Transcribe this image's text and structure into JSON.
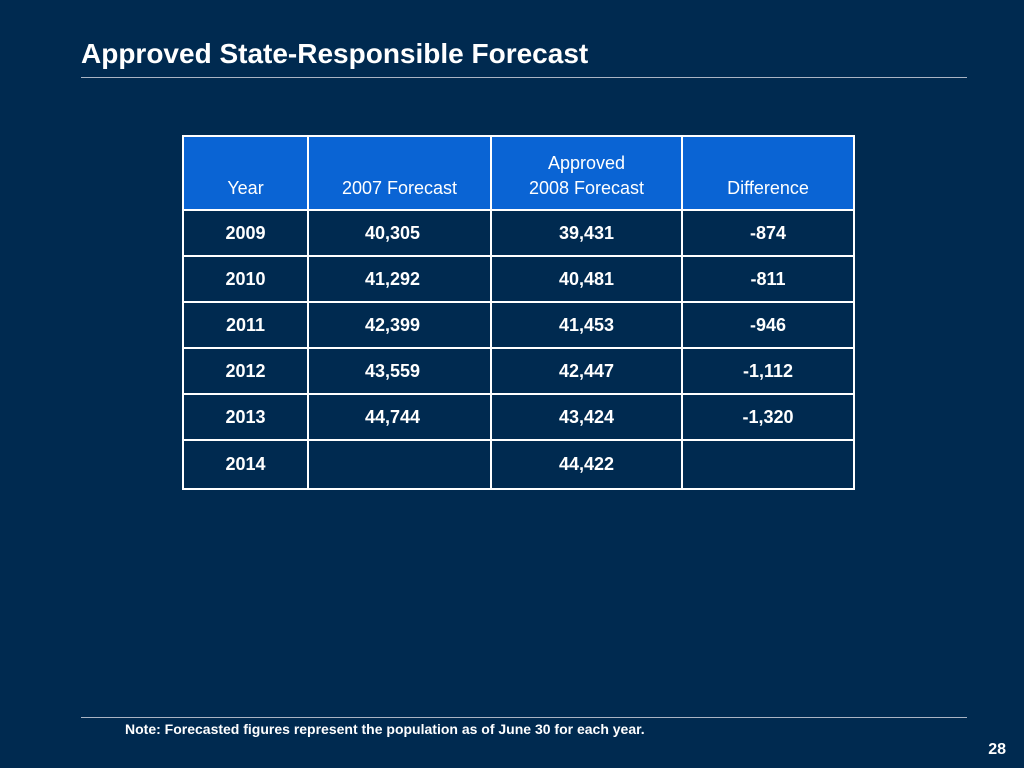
{
  "slide": {
    "title": "Approved State-Responsible Forecast",
    "note": "Note:  Forecasted figures represent the population as of June 30 for each year.",
    "page_number": "28"
  },
  "table": {
    "headers": {
      "year": "Year",
      "forecast_2007": "2007 Forecast",
      "approved_2008_line1": "Approved",
      "approved_2008_line2": "2008 Forecast",
      "difference": "Difference"
    },
    "rows": [
      {
        "year": "2009",
        "forecast_2007": "40,305",
        "approved_2008": "39,431",
        "difference": "-874"
      },
      {
        "year": "2010",
        "forecast_2007": "41,292",
        "approved_2008": "40,481",
        "difference": "-811"
      },
      {
        "year": "2011",
        "forecast_2007": "42,399",
        "approved_2008": "41,453",
        "difference": "-946"
      },
      {
        "year": "2012",
        "forecast_2007": "43,559",
        "approved_2008": "42,447",
        "difference": "-1,112"
      },
      {
        "year": "2013",
        "forecast_2007": "44,744",
        "approved_2008": "43,424",
        "difference": "-1,320"
      },
      {
        "year": "2014",
        "forecast_2007": "",
        "approved_2008": "44,422",
        "difference": ""
      }
    ]
  },
  "colors": {
    "background": "#002a50",
    "header_fill": "#0a64d4",
    "text": "#ffffff",
    "rule": "#aab4c4"
  }
}
